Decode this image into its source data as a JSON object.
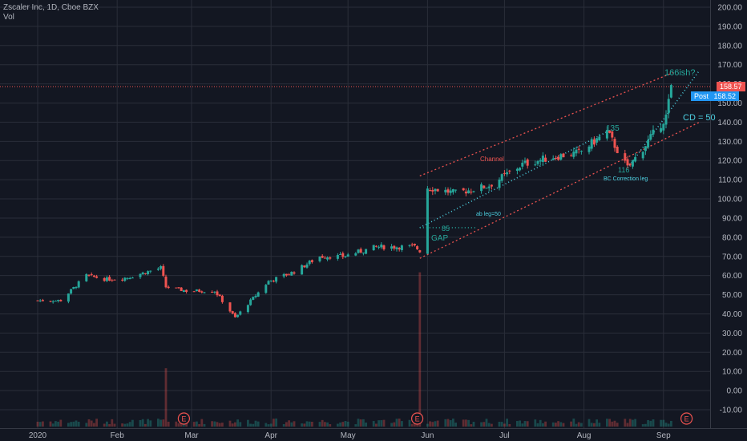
{
  "header": {
    "symbol": "Zscaler Inc, 1D, Cboe BZX",
    "volume_label": "Vol"
  },
  "price_badges": {
    "last": "158.57",
    "post_label": "Post",
    "post_value": "158.52"
  },
  "colors": {
    "up": "#26a69a",
    "down": "#ef5350",
    "background": "#131722",
    "grid": "#2a2e39",
    "trendline_cyan": "#4dd0e1",
    "channel_red": "#ef5350",
    "post_badge": "#2196f3"
  },
  "annotations": {
    "target": "166ish?",
    "cd": "CD = 50",
    "channel": "Channel",
    "ab_leg": "ab leg=50",
    "bc_leg": "BC Correction leg",
    "gap": "GAP",
    "level_85": "85",
    "level_135": "135",
    "level_116": "116"
  },
  "earnings_marker": "E",
  "chart_data": {
    "type": "candlestick",
    "title": "Zscaler Inc, 1D, Cboe BZX",
    "ylim": [
      -15,
      200
    ],
    "y_ticks": [
      "200.00",
      "190.00",
      "180.00",
      "170.00",
      "160.00",
      "150.00",
      "140.00",
      "130.00",
      "120.00",
      "110.00",
      "100.00",
      "90.00",
      "80.00",
      "70.00",
      "60.00",
      "50.00",
      "40.00",
      "30.00",
      "20.00",
      "10.00",
      "0.00",
      "-10.00"
    ],
    "x_labels": [
      "2020",
      "Feb",
      "Mar",
      "Apr",
      "May",
      "Jun",
      "Jul",
      "Aug",
      "Sep"
    ],
    "grid": true,
    "anchors": [
      {
        "date": "2020-01-01",
        "close": 47
      },
      {
        "date": "2020-01-10",
        "close": 47
      },
      {
        "date": "2020-01-20",
        "close": 60
      },
      {
        "date": "2020-01-28",
        "close": 58
      },
      {
        "date": "2020-02-05",
        "close": 59
      },
      {
        "date": "2020-02-18",
        "close": 64
      },
      {
        "date": "2020-02-20",
        "close": 54
      },
      {
        "date": "2020-02-28",
        "close": 52
      },
      {
        "date": "2020-03-10",
        "close": 52
      },
      {
        "date": "2020-03-18",
        "close": 38
      },
      {
        "date": "2020-03-31",
        "close": 57
      },
      {
        "date": "2020-04-10",
        "close": 62
      },
      {
        "date": "2020-04-20",
        "close": 70
      },
      {
        "date": "2020-04-29",
        "close": 70
      },
      {
        "date": "2020-05-12",
        "close": 75
      },
      {
        "date": "2020-05-27",
        "close": 75
      },
      {
        "date": "2020-05-29",
        "close": 73
      },
      {
        "date": "2020-06-01",
        "close": 106
      },
      {
        "date": "2020-06-12",
        "close": 103
      },
      {
        "date": "2020-06-25",
        "close": 107
      },
      {
        "date": "2020-07-08",
        "close": 118
      },
      {
        "date": "2020-07-20",
        "close": 122
      },
      {
        "date": "2020-07-30",
        "close": 124
      },
      {
        "date": "2020-08-10",
        "close": 135
      },
      {
        "date": "2020-08-18",
        "close": 116
      },
      {
        "date": "2020-08-26",
        "close": 130
      },
      {
        "date": "2020-09-02",
        "close": 143
      },
      {
        "date": "2020-09-04",
        "close": 158
      }
    ],
    "volume_spikes": [
      {
        "date": "2020-02-20",
        "volume": 14
      },
      {
        "date": "2020-05-29",
        "volume": 37
      }
    ],
    "earnings_dates": [
      "2020-02-27",
      "2020-05-28",
      "2020-09-10"
    ],
    "drawings": {
      "channel_upper": [
        {
          "date": "2020-05-29",
          "price": 112
        },
        {
          "date": "2020-09-05",
          "price": 166
        }
      ],
      "channel_lower": [
        {
          "date": "2020-05-29",
          "price": 69
        },
        {
          "date": "2020-09-15",
          "price": 140
        }
      ],
      "ab_trend": [
        {
          "date": "2020-05-29",
          "price": 85
        },
        {
          "date": "2020-08-10",
          "price": 135
        }
      ],
      "cd_trend": [
        {
          "date": "2020-08-18",
          "price": 116
        },
        {
          "date": "2020-09-15",
          "price": 167
        }
      ],
      "level_85": [
        {
          "date": "2020-05-29",
          "price": 85
        },
        {
          "date": "2020-06-20",
          "price": 85
        }
      ],
      "last_price_line": 158.57
    }
  }
}
